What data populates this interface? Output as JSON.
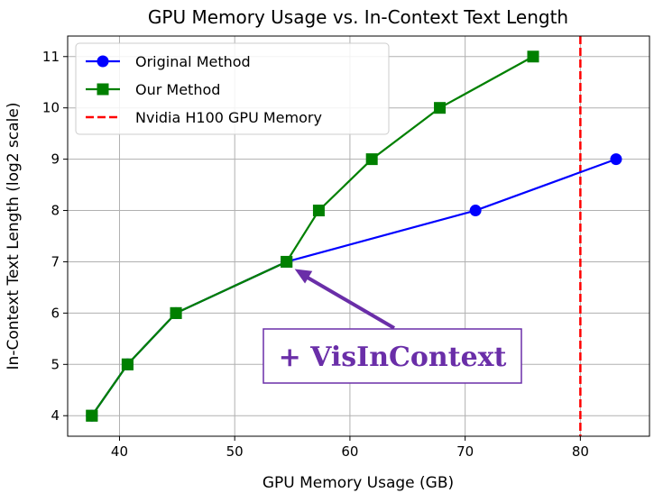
{
  "chart_data": {
    "type": "line",
    "title": "GPU Memory Usage vs. In-Context Text Length",
    "xlabel": "GPU Memory Usage (GB)",
    "ylabel": "In-Context Text Length (log2 scale)",
    "xlim": [
      35.5,
      86
    ],
    "ylim": [
      3.6,
      11.4
    ],
    "xticks": [
      40,
      50,
      60,
      70,
      80
    ],
    "yticks": [
      4,
      5,
      6,
      7,
      8,
      9,
      10,
      11
    ],
    "grid": true,
    "legend_position": "top-left",
    "series": [
      {
        "name": "Original Method",
        "color": "#0000ff",
        "marker": "circle",
        "x": [
          37.6,
          40.7,
          44.9,
          54.5,
          70.9,
          83.1
        ],
        "y": [
          4,
          5,
          6,
          7,
          8,
          9
        ]
      },
      {
        "name": "Our Method",
        "color": "#008000",
        "marker": "square",
        "x": [
          37.6,
          40.7,
          44.9,
          54.5,
          57.3,
          61.9,
          67.8,
          75.9
        ],
        "y": [
          4,
          5,
          6,
          7,
          8,
          9,
          10,
          11
        ]
      }
    ],
    "reference_lines": [
      {
        "name": "Nvidia H100 GPU Memory",
        "orientation": "vertical",
        "x": 80,
        "color": "#ff0000",
        "style": "dashed"
      }
    ],
    "annotation": {
      "text": "+ VisInContext",
      "color": "#6a2ea8",
      "arrow_target": [
        54.5,
        7
      ]
    }
  }
}
